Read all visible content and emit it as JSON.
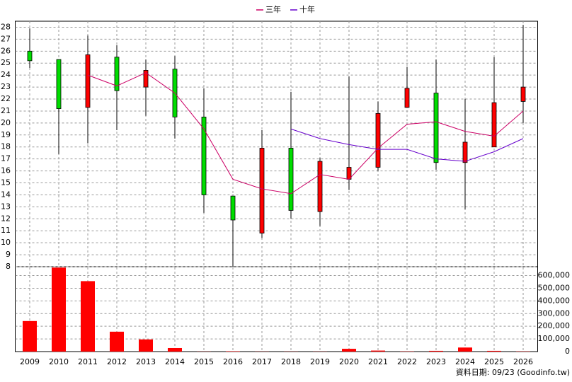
{
  "chart_data": [
    {
      "type": "candlestick",
      "categories": [
        "2009",
        "2010",
        "2011",
        "2012",
        "2013",
        "2014",
        "2015",
        "2016",
        "2017",
        "2018",
        "2019",
        "2020",
        "2021",
        "2022",
        "2023",
        "2024",
        "2025",
        "2026"
      ],
      "open": [
        26.0,
        25.3,
        21.3,
        25.5,
        23.0,
        24.5,
        20.5,
        13.9,
        10.8,
        17.9,
        12.6,
        15.3,
        16.3,
        21.3,
        22.5,
        16.7,
        18.0,
        21.8
      ],
      "high": [
        27.9,
        25.3,
        27.3,
        26.5,
        25.3,
        25.6,
        22.9,
        13.9,
        19.4,
        22.6,
        17.1,
        23.9,
        21.8,
        24.7,
        25.3,
        22.0,
        25.5,
        28.2
      ],
      "low": [
        24.6,
        17.4,
        18.3,
        19.4,
        20.6,
        18.7,
        12.5,
        8.0,
        10.4,
        12.0,
        11.4,
        14.4,
        16.0,
        21.3,
        16.1,
        12.8,
        18.0,
        20.0
      ],
      "close": [
        25.2,
        21.2,
        25.7,
        22.7,
        24.4,
        20.5,
        14.0,
        11.9,
        17.9,
        12.7,
        16.8,
        16.3,
        20.8,
        22.9,
        16.7,
        18.4,
        21.7,
        23.0
      ],
      "up_color": "#ff0000",
      "down_color": "#00dd00",
      "series": [
        {
          "name": "三年",
          "color": "#cc0066",
          "values": [
            null,
            null,
            24.0,
            23.1,
            24.2,
            22.5,
            19.5,
            15.3,
            14.5,
            14.1,
            15.7,
            15.3,
            17.9,
            19.9,
            20.1,
            19.3,
            18.9,
            21.0
          ]
        },
        {
          "name": "十年",
          "color": "#6600cc",
          "values": [
            null,
            null,
            null,
            null,
            null,
            null,
            null,
            null,
            null,
            19.5,
            18.7,
            18.2,
            17.8,
            17.8,
            17.0,
            16.8,
            17.6,
            18.7
          ]
        }
      ],
      "ylim": [
        8,
        28.5
      ],
      "yticks": [
        8,
        9,
        10,
        11,
        12,
        13,
        14,
        15,
        16,
        17,
        18,
        19,
        20,
        21,
        22,
        23,
        24,
        25,
        26,
        27,
        28
      ],
      "grid": true,
      "footer": "資料日期: 09/23 (Goodinfo.tw)"
    },
    {
      "type": "bar",
      "color": "#ff0000",
      "values": [
        241000,
        663000,
        556000,
        157000,
        96000,
        28000,
        1000,
        3000,
        1000,
        1000,
        1000,
        22000,
        8000,
        2000,
        6000,
        32000,
        6000,
        2000
      ],
      "ylim": [
        0,
        670000
      ],
      "yticks": [
        0,
        {
          "value": 100000,
          "label": "100,000"
        },
        {
          "value": 200000,
          "label": "200,000"
        },
        {
          "value": 300000,
          "label": "300,000"
        },
        {
          "value": 400000,
          "label": "400,000"
        },
        {
          "value": 500000,
          "label": "500,000"
        },
        {
          "value": 600000,
          "label": "600,000"
        }
      ],
      "grid": true
    }
  ]
}
